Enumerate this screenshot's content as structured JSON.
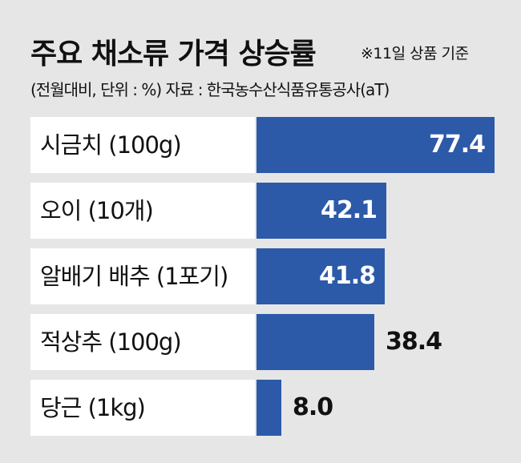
{
  "title": "주요 채소류 가격 상승률",
  "note": "※11일 상품 기준",
  "subtitle": "(전월대비, 단위 : %)  자료 : 한국농수산식품유통공사(aT)",
  "colors": {
    "bar": "#2c5aa9",
    "background": "#e6e6e6",
    "label_box": "#ffffff"
  },
  "chart_data": {
    "type": "bar",
    "orientation": "horizontal",
    "categories": [
      "시금치 (100g)",
      "오이 (10개)",
      "알배기 배추 (1포기)",
      "적상추 (100g)",
      "당근 (1kg)"
    ],
    "values": [
      77.4,
      42.1,
      41.8,
      38.4,
      8.0
    ],
    "value_labels": [
      "77.4",
      "42.1",
      "41.8",
      "38.4",
      "8.0"
    ],
    "title": "주요 채소류 가격 상승률",
    "xlabel": "",
    "ylabel": "",
    "xlim": [
      0,
      77.4
    ],
    "grid": false,
    "legend": "none"
  }
}
